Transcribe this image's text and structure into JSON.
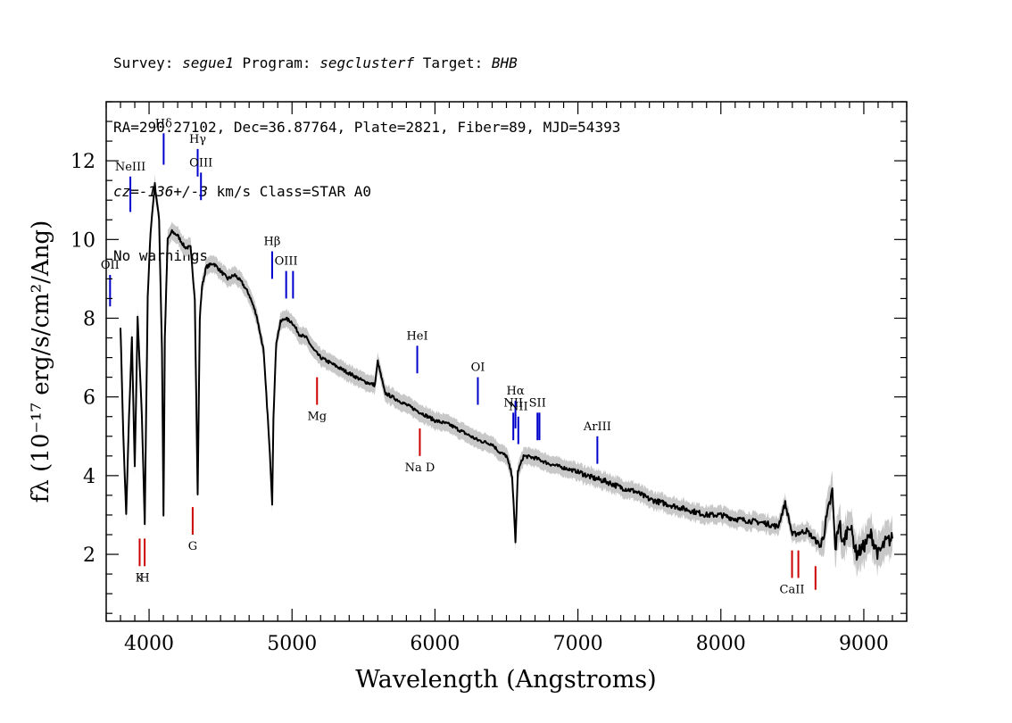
{
  "header": {
    "line1": {
      "survey_label": "Survey: ",
      "survey": "segue1",
      "program_label": " Program: ",
      "program": "segclusterf",
      "target_label": " Target: ",
      "target": "BHB"
    },
    "line2": "RA=290.27102, Dec=36.87764, Plate=2821, Fiber=89, MJD=54393",
    "line3": {
      "cz": "cz=-136+/-3",
      "rest": " km/s Class=STAR A0"
    },
    "line4": "No warnings."
  },
  "chart_data": {
    "type": "line",
    "xlabel": "Wavelength (Angstroms)",
    "ylabel": "fλ (10⁻¹⁷ erg/s/cm²/Ang)",
    "xlim": [
      3700,
      9300
    ],
    "ylim": [
      0.3,
      13.5
    ],
    "x_ticks": [
      4000,
      5000,
      6000,
      7000,
      8000,
      9000
    ],
    "y_ticks": [
      2,
      4,
      6,
      8,
      10,
      12
    ],
    "grid": false,
    "colors": {
      "flux": "#000000",
      "error": "#c8c8c8",
      "emission": "#0000cc",
      "absorption": "#cc0000"
    },
    "series": [
      {
        "x": [
          3800,
          3820,
          3840,
          3860,
          3880,
          3900,
          3920,
          3950,
          3970,
          3990,
          4010,
          4040,
          4070,
          4090,
          4101,
          4110,
          4130,
          4160,
          4200,
          4250,
          4290,
          4320,
          4340,
          4355,
          4370,
          4400,
          4450,
          4500,
          4550,
          4600,
          4650,
          4700,
          4750,
          4800,
          4830,
          4850,
          4861,
          4870,
          4890,
          4920,
          4950,
          5000,
          5050,
          5100,
          5150,
          5200,
          5300,
          5400,
          5500,
          5580,
          5600,
          5650,
          5700,
          5800,
          5900,
          6000,
          6100,
          6200,
          6300,
          6400,
          6450,
          6500,
          6540,
          6563,
          6580,
          6620,
          6700,
          6800,
          6900,
          7000,
          7100,
          7200,
          7300,
          7400,
          7500,
          7600,
          7700,
          7800,
          7900,
          8000,
          8100,
          8200,
          8300,
          8400,
          8450,
          8500,
          8600,
          8700,
          8780,
          8800,
          8830,
          8850,
          8900,
          8950,
          9000,
          9050,
          9100,
          9150,
          9200
        ],
        "y": [
          7.8,
          5.0,
          3.0,
          5.5,
          7.5,
          4.2,
          8.0,
          5.5,
          2.8,
          8.5,
          10.2,
          11.4,
          10.5,
          7.2,
          3.0,
          7.5,
          10.0,
          10.2,
          10.1,
          9.8,
          9.8,
          8.5,
          3.5,
          8.0,
          8.8,
          9.3,
          9.4,
          9.2,
          9.0,
          9.1,
          8.9,
          8.6,
          8.1,
          7.2,
          5.5,
          4.2,
          3.3,
          5.5,
          7.4,
          7.9,
          8.0,
          7.9,
          7.6,
          7.5,
          7.2,
          7.0,
          6.8,
          6.6,
          6.4,
          6.3,
          6.9,
          6.1,
          6.0,
          5.8,
          5.6,
          5.4,
          5.3,
          5.1,
          4.9,
          4.8,
          4.6,
          4.5,
          4.0,
          2.3,
          4.1,
          4.5,
          4.45,
          4.3,
          4.2,
          4.1,
          3.95,
          3.85,
          3.7,
          3.6,
          3.4,
          3.3,
          3.2,
          3.1,
          3.0,
          3.0,
          2.9,
          2.85,
          2.8,
          2.7,
          3.3,
          2.5,
          2.6,
          2.2,
          3.6,
          2.1,
          2.9,
          2.2,
          2.8,
          2.0,
          2.2,
          2.5,
          2.0,
          2.3,
          2.4
        ]
      }
    ],
    "lines": [
      {
        "label": "OII",
        "wave": 3727,
        "type": "emission",
        "y_top": 9.1,
        "y_bot": 8.3
      },
      {
        "label": "NeIII",
        "wave": 3869,
        "type": "emission",
        "y_top": 11.6,
        "y_bot": 10.7
      },
      {
        "label": "Hδ",
        "wave": 4102,
        "type": "emission",
        "y_top": 12.7,
        "y_bot": 11.9
      },
      {
        "label": "Hγ",
        "wave": 4340,
        "type": "emission",
        "y_top": 12.3,
        "y_bot": 11.6
      },
      {
        "label": "OIII",
        "wave": 4363,
        "type": "emission",
        "y_top": 11.7,
        "y_bot": 11.0
      },
      {
        "label": "Hβ",
        "wave": 4861,
        "type": "emission",
        "y_top": 9.7,
        "y_bot": 9.0
      },
      {
        "label": "OIII",
        "wave": 4959,
        "type": "emission",
        "y_top": 9.2,
        "y_bot": 8.5
      },
      {
        "label": "",
        "wave": 5007,
        "type": "emission",
        "y_top": 9.2,
        "y_bot": 8.5
      },
      {
        "label": "HeI",
        "wave": 5876,
        "type": "emission",
        "y_top": 7.3,
        "y_bot": 6.6
      },
      {
        "label": "OI",
        "wave": 6300,
        "type": "emission",
        "y_top": 6.5,
        "y_bot": 5.8
      },
      {
        "label": "NII",
        "wave": 6548,
        "type": "emission",
        "y_top": 5.6,
        "y_bot": 4.9
      },
      {
        "label": "Hα",
        "wave": 6563,
        "type": "emission",
        "y_top": 5.9,
        "y_bot": 5.2
      },
      {
        "label": "NII",
        "wave": 6583,
        "type": "emission",
        "y_top": 5.5,
        "y_bot": 4.8
      },
      {
        "label": "SII",
        "wave": 6717,
        "type": "emission",
        "y_top": 5.6,
        "y_bot": 4.9
      },
      {
        "label": "",
        "wave": 6731,
        "type": "emission",
        "y_top": 5.6,
        "y_bot": 4.9
      },
      {
        "label": "ArIII",
        "wave": 7136,
        "type": "emission",
        "y_top": 5.0,
        "y_bot": 4.3
      },
      {
        "label": "K",
        "wave": 3934,
        "type": "absorption",
        "y_top": 2.4,
        "y_bot": 1.7
      },
      {
        "label": "H",
        "wave": 3969,
        "type": "absorption",
        "y_top": 2.4,
        "y_bot": 1.7
      },
      {
        "label": "G",
        "wave": 4305,
        "type": "absorption",
        "y_top": 3.2,
        "y_bot": 2.5
      },
      {
        "label": "Mg",
        "wave": 5175,
        "type": "absorption",
        "y_top": 6.5,
        "y_bot": 5.8
      },
      {
        "label": "Na D",
        "wave": 5894,
        "type": "absorption",
        "y_top": 5.2,
        "y_bot": 4.5
      },
      {
        "label": "CaII",
        "wave": 8498,
        "type": "absorption",
        "y_top": 2.1,
        "y_bot": 1.4
      },
      {
        "label": "",
        "wave": 8542,
        "type": "absorption",
        "y_top": 2.1,
        "y_bot": 1.4
      },
      {
        "label": "",
        "wave": 8662,
        "type": "absorption",
        "y_top": 1.7,
        "y_bot": 1.1
      }
    ]
  }
}
